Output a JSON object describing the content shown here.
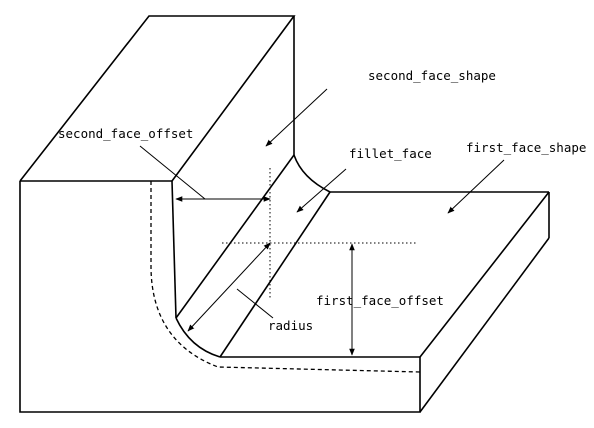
{
  "labels": {
    "second_face_shape": "second_face_shape",
    "second_face_offset": "second_face_offset",
    "fillet_face": "fillet_face",
    "first_face_shape": "first_face_shape",
    "first_face_offset": "first_face_offset",
    "radius": "radius"
  },
  "colors": {
    "line": "#000000",
    "background": "#ffffff"
  }
}
